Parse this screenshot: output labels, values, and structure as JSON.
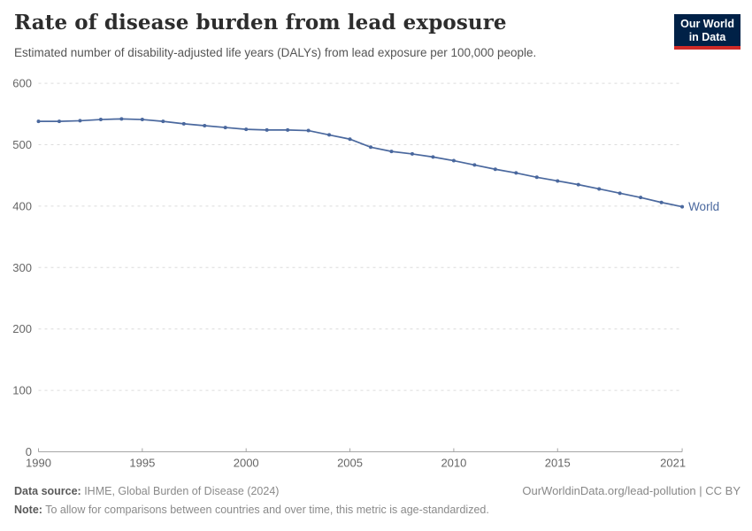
{
  "header": {
    "title": "Rate of disease burden from lead exposure",
    "subtitle": "Estimated number of disability-adjusted life years (DALYs) from lead exposure per 100,000 people."
  },
  "logo": {
    "line1": "Our World",
    "line2": "in Data",
    "bg_color": "#002147",
    "accent_color": "#cf2a27"
  },
  "chart_data": {
    "type": "line",
    "title": "Rate of disease burden from lead exposure",
    "xlabel": "",
    "ylabel": "",
    "xlim": [
      1990,
      2021
    ],
    "ylim": [
      0,
      600
    ],
    "grid": "horizontal-dashed",
    "legend_position": "end-of-line-label",
    "xticks": [
      1990,
      1995,
      2000,
      2005,
      2010,
      2015,
      2021
    ],
    "yticks": [
      0,
      100,
      200,
      300,
      400,
      500,
      600
    ],
    "gridline_color": "#dcdcdc",
    "axis_color": "#a5a5a5",
    "tick_label_color": "#666666",
    "series": [
      {
        "name": "World",
        "color": "#4a689e",
        "x": [
          1990,
          1991,
          1992,
          1993,
          1994,
          1995,
          1996,
          1997,
          1998,
          1999,
          2000,
          2001,
          2002,
          2003,
          2004,
          2005,
          2006,
          2007,
          2008,
          2009,
          2010,
          2011,
          2012,
          2013,
          2014,
          2015,
          2016,
          2017,
          2018,
          2019,
          2020,
          2021
        ],
        "values": [
          538,
          538,
          539,
          541,
          542,
          541,
          538,
          534,
          531,
          528,
          525,
          524,
          524,
          523,
          516,
          509,
          496,
          489,
          485,
          480,
          474,
          467,
          460,
          454,
          447,
          441,
          435,
          428,
          421,
          414,
          406,
          399
        ]
      }
    ]
  },
  "footer": {
    "source_label": "Data source:",
    "source_text": " IHME, Global Burden of Disease (2024)",
    "note_label": "Note:",
    "note_text": " To allow for comparisons between countries and over time, this metric is age-standardized.",
    "link": "OurWorldinData.org/lead-pollution | CC BY"
  }
}
